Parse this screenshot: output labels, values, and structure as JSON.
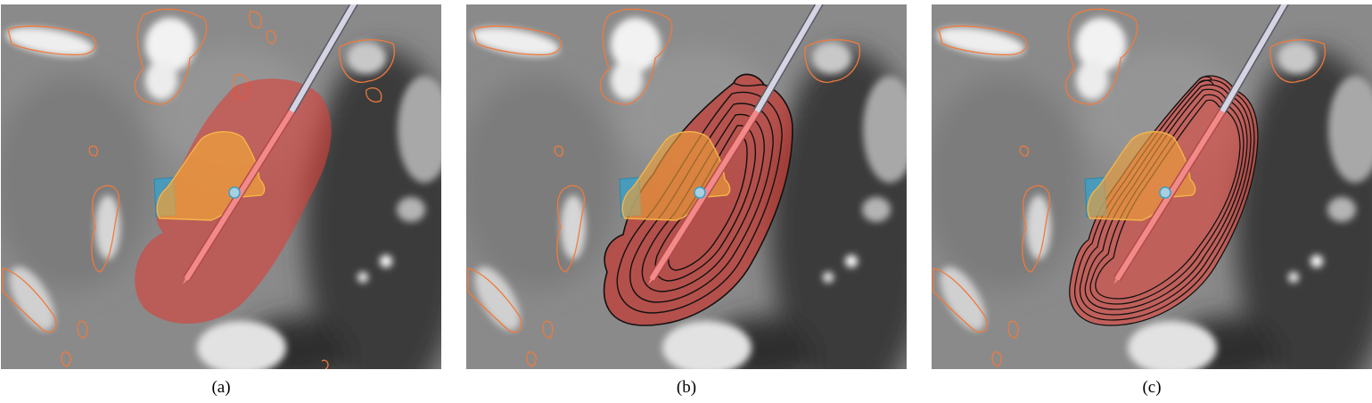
{
  "figure": {
    "panels": [
      {
        "id": "a",
        "caption": "(a)"
      },
      {
        "id": "b",
        "caption": "(b)"
      },
      {
        "id": "c",
        "caption": "(c)"
      }
    ]
  },
  "colors": {
    "ablation_zone": "#d9413a",
    "tumor": "#f0a23a",
    "vessel_contour": "#f07a3c",
    "blue_structure": "#3aa0c8",
    "needle_shaft": "#c8c8d8",
    "needle_tip": "#f08080",
    "isoline": "#111111"
  }
}
